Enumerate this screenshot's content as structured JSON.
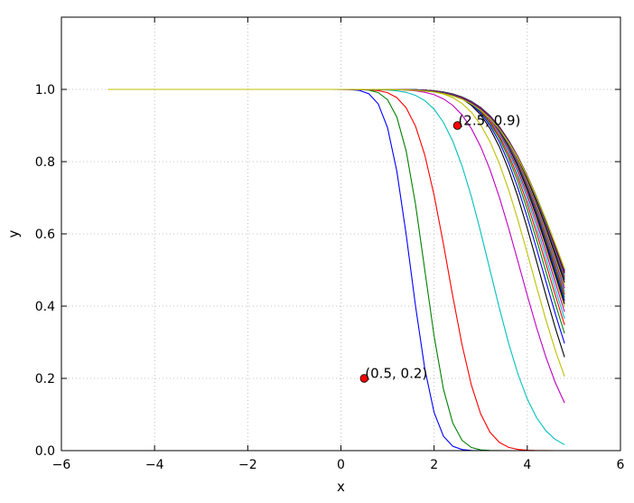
{
  "chart_data": {
    "type": "line",
    "title": "",
    "xlabel": "x",
    "ylabel": "y",
    "xlim": [
      -6,
      6
    ],
    "ylim": [
      0.0,
      1.2
    ],
    "xticks": [
      -6,
      -4,
      -2,
      0,
      2,
      4,
      6
    ],
    "xtick_labels": [
      "−6",
      "−4",
      "−2",
      "0",
      "2",
      "4",
      "6"
    ],
    "yticks": [
      0.0,
      0.2,
      0.4,
      0.6,
      0.8,
      1.0
    ],
    "ytick_labels": [
      "0.0",
      "0.2",
      "0.4",
      "0.6",
      "0.8",
      "1.0"
    ],
    "grid": true,
    "legend": "none",
    "x_range": [
      -5,
      4.8
    ],
    "x_step": 0.2,
    "curve_family": "y = 1 − Φ((x − μ)/σ), Φ = standard normal CDF",
    "series": [
      {
        "mu": 1.5,
        "sigma": 0.4,
        "color": "#0000ff"
      },
      {
        "mu": 1.8,
        "sigma": 0.42,
        "color": "#008000"
      },
      {
        "mu": 2.3,
        "sigma": 0.55,
        "color": "#ff0000"
      },
      {
        "mu": 3.2,
        "sigma": 0.75,
        "color": "#00bfbf"
      },
      {
        "mu": 3.85,
        "sigma": 0.85,
        "color": "#bf00bf"
      },
      {
        "mu": 4.1,
        "sigma": 0.85,
        "color": "#bfbf00"
      },
      {
        "mu": 4.25,
        "sigma": 0.85,
        "color": "#000000"
      },
      {
        "mu": 4.33,
        "sigma": 0.88,
        "color": "#0000ff"
      },
      {
        "mu": 4.39,
        "sigma": 0.9,
        "color": "#008000"
      },
      {
        "mu": 4.44,
        "sigma": 0.92,
        "color": "#ff0000"
      },
      {
        "mu": 4.48,
        "sigma": 0.93,
        "color": "#00bfbf"
      },
      {
        "mu": 4.52,
        "sigma": 0.95,
        "color": "#bf00bf"
      },
      {
        "mu": 4.55,
        "sigma": 0.96,
        "color": "#bfbf00"
      },
      {
        "mu": 4.57,
        "sigma": 0.97,
        "color": "#000000"
      },
      {
        "mu": 4.59,
        "sigma": 0.98,
        "color": "#0000ff"
      },
      {
        "mu": 4.61,
        "sigma": 0.99,
        "color": "#008000"
      },
      {
        "mu": 4.63,
        "sigma": 1.0,
        "color": "#ff0000"
      },
      {
        "mu": 4.65,
        "sigma": 1.01,
        "color": "#00bfbf"
      },
      {
        "mu": 4.67,
        "sigma": 1.02,
        "color": "#bf00bf"
      },
      {
        "mu": 4.69,
        "sigma": 1.03,
        "color": "#bfbf00"
      },
      {
        "mu": 4.71,
        "sigma": 1.04,
        "color": "#000000"
      },
      {
        "mu": 4.73,
        "sigma": 1.05,
        "color": "#0000ff"
      },
      {
        "mu": 4.74,
        "sigma": 1.06,
        "color": "#008000"
      },
      {
        "mu": 4.75,
        "sigma": 1.07,
        "color": "#ff0000"
      },
      {
        "mu": 4.76,
        "sigma": 1.08,
        "color": "#00bfbf"
      },
      {
        "mu": 4.77,
        "sigma": 1.09,
        "color": "#bf00bf"
      },
      {
        "mu": 4.78,
        "sigma": 1.1,
        "color": "#000000"
      },
      {
        "mu": 4.79,
        "sigma": 1.11,
        "color": "#ff0000"
      },
      {
        "mu": 4.795,
        "sigma": 1.12,
        "color": "#0000ff"
      },
      {
        "mu": 4.8,
        "sigma": 1.13,
        "color": "#bf00bf"
      },
      {
        "mu": 4.805,
        "sigma": 1.14,
        "color": "#008000"
      },
      {
        "mu": 4.81,
        "sigma": 1.15,
        "color": "#bfbf00"
      }
    ],
    "points": [
      {
        "x": 2.5,
        "y": 0.9,
        "label": "(2.5, 0.9)",
        "color": "#ff0000"
      },
      {
        "x": 0.5,
        "y": 0.2,
        "label": "(0.5, 0.2)",
        "color": "#ff0000"
      }
    ]
  }
}
